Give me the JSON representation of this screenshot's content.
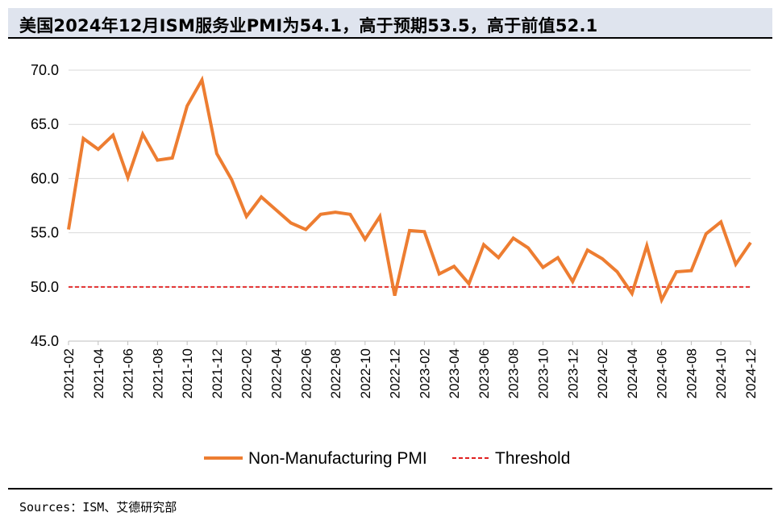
{
  "title": "美国2024年12月ISM服务业PMI为54.1，高于预期53.5，高于前值52.1",
  "source": "Sources：ISM、艾德研究部",
  "colors": {
    "series": "#ed7d31",
    "threshold": "#e02020",
    "grid": "#d9d9d9"
  },
  "chart_data": {
    "type": "line",
    "x": [
      "2021-02",
      "2021-03",
      "2021-04",
      "2021-05",
      "2021-06",
      "2021-07",
      "2021-08",
      "2021-09",
      "2021-10",
      "2021-11",
      "2021-12",
      "2022-01",
      "2022-02",
      "2022-03",
      "2022-04",
      "2022-05",
      "2022-06",
      "2022-07",
      "2022-08",
      "2022-09",
      "2022-10",
      "2022-11",
      "2022-12",
      "2023-01",
      "2023-02",
      "2023-03",
      "2023-04",
      "2023-05",
      "2023-06",
      "2023-07",
      "2023-08",
      "2023-09",
      "2023-10",
      "2023-11",
      "2023-12",
      "2024-01",
      "2024-02",
      "2024-03",
      "2024-04",
      "2024-05",
      "2024-06",
      "2024-07",
      "2024-08",
      "2024-09",
      "2024-10",
      "2024-11",
      "2024-12"
    ],
    "tick_labels": [
      "2021-02",
      "2021-04",
      "2021-06",
      "2021-08",
      "2021-10",
      "2021-12",
      "2022-02",
      "2022-04",
      "2022-06",
      "2022-08",
      "2022-10",
      "2022-12",
      "2023-02",
      "2023-04",
      "2023-06",
      "2023-08",
      "2023-10",
      "2023-12",
      "2024-02",
      "2024-04",
      "2024-06",
      "2024-08",
      "2024-10",
      "2024-12"
    ],
    "series": [
      {
        "name": "Non-Manufacturing PMI",
        "values": [
          55.3,
          63.7,
          62.7,
          64.0,
          60.1,
          64.1,
          61.7,
          61.9,
          66.7,
          69.1,
          62.3,
          59.9,
          56.5,
          58.3,
          57.1,
          55.9,
          55.3,
          56.7,
          56.9,
          56.7,
          54.4,
          56.5,
          49.2,
          55.2,
          55.1,
          51.2,
          51.9,
          50.3,
          53.9,
          52.7,
          54.5,
          53.6,
          51.8,
          52.7,
          50.5,
          53.4,
          52.6,
          51.4,
          49.4,
          53.8,
          48.8,
          51.4,
          51.5,
          54.9,
          56.0,
          52.1,
          54.1
        ]
      },
      {
        "name": "Threshold",
        "constant": 50.0
      }
    ],
    "ylim": [
      45.0,
      70.0
    ],
    "yticks": [
      "45.0",
      "50.0",
      "55.0",
      "60.0",
      "65.0",
      "70.0"
    ],
    "grid": true,
    "legend": "bottom-center"
  }
}
